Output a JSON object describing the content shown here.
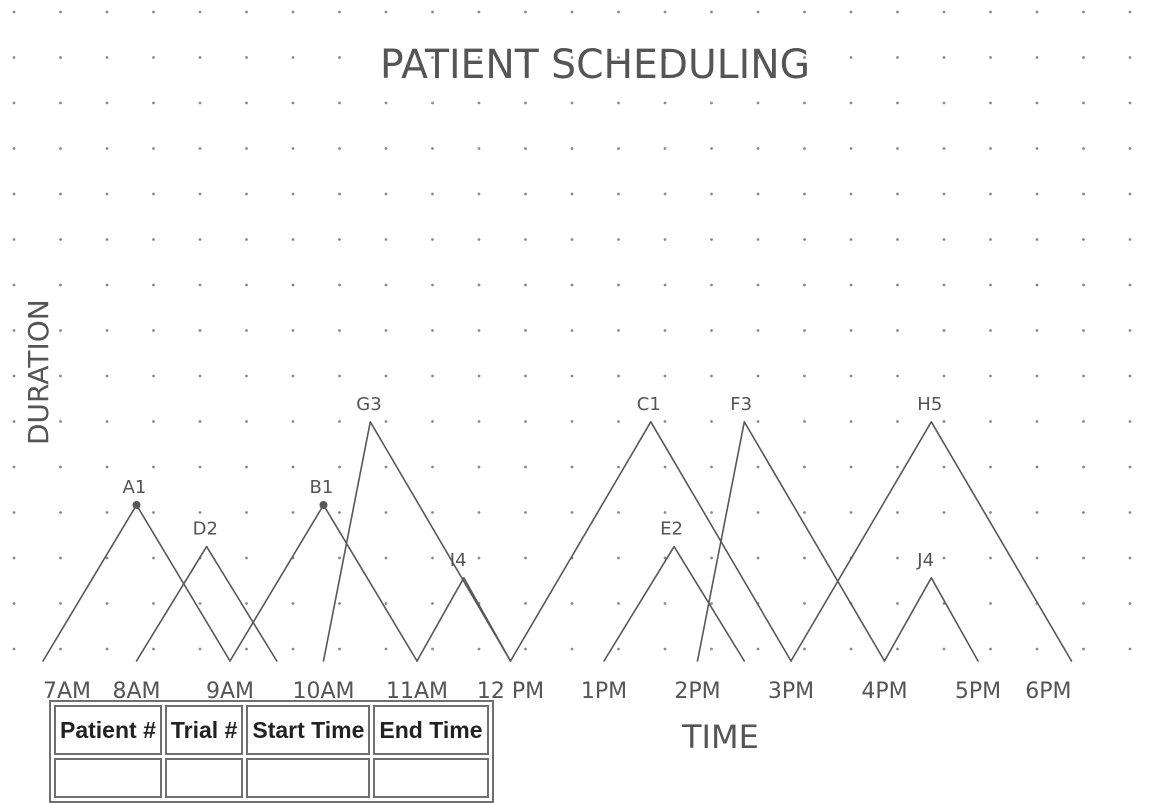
{
  "title": "PATIENT SCHEDULING",
  "y_axis_label": "DURATION",
  "x_axis_label": "TIME",
  "time_ticks": [
    "7AM",
    "8AM",
    "9AM",
    "10AM",
    "11AM",
    "12 PM",
    "1PM",
    "2PM",
    "3PM",
    "4PM",
    "5PM",
    "6PM"
  ],
  "appointments": [
    {
      "label": "A1",
      "start_hour": 7.0,
      "peak_hour": 8.0,
      "end_hour": 9.0,
      "height": 1.5,
      "dot": true
    },
    {
      "label": "D2",
      "start_hour": 8.0,
      "peak_hour": 8.75,
      "end_hour": 9.5,
      "height": 1.1,
      "dot": false
    },
    {
      "label": "B1",
      "start_hour": 9.0,
      "peak_hour": 10.0,
      "end_hour": 11.0,
      "height": 1.5,
      "dot": true
    },
    {
      "label": "G3",
      "start_hour": 10.0,
      "peak_hour": 10.5,
      "end_hour": 12.0,
      "height": 2.3,
      "dot": false
    },
    {
      "label": "I4",
      "start_hour": 11.0,
      "peak_hour": 11.5,
      "end_hour": 12.0,
      "height": 0.8,
      "dot": false
    },
    {
      "label": "C1",
      "start_hour": 12.0,
      "peak_hour": 13.5,
      "end_hour": 15.0,
      "height": 2.3,
      "dot": false
    },
    {
      "label": "E2",
      "start_hour": 13.0,
      "peak_hour": 13.75,
      "end_hour": 14.5,
      "height": 1.1,
      "dot": false
    },
    {
      "label": "F3",
      "start_hour": 14.0,
      "peak_hour": 14.5,
      "end_hour": 16.0,
      "height": 2.3,
      "dot": false
    },
    {
      "label": "H5",
      "start_hour": 15.0,
      "peak_hour": 16.5,
      "end_hour": 18.0,
      "height": 2.3,
      "dot": false
    },
    {
      "label": "J4",
      "start_hour": 16.0,
      "peak_hour": 16.5,
      "end_hour": 17.0,
      "height": 0.8,
      "dot": false
    }
  ],
  "table": {
    "headers": [
      "Patient #",
      "Trial #",
      "Start Time",
      "End Time"
    ]
  },
  "colors": {
    "ink": "#585858",
    "grid_dot": "#8a8a8a",
    "table_border": "#6f6f6f"
  }
}
